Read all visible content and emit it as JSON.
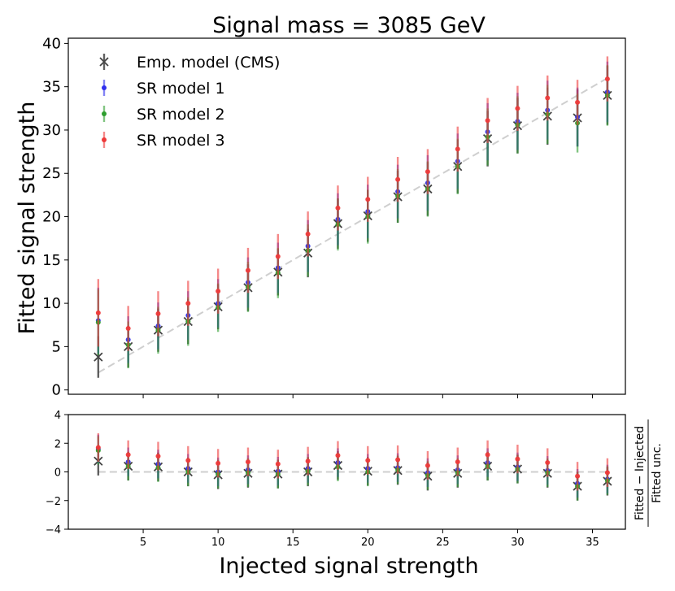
{
  "chart_data": {
    "type": "scatter",
    "title": "Signal mass = 3085 GeV",
    "xlabel": "Injected signal strength",
    "ylabel_top": "Fitted signal strength",
    "ylabel_bottom_numerator": "Fitted − Injected",
    "ylabel_bottom_denominator": "Fitted unc.",
    "xlim": [
      0,
      37.2
    ],
    "ylim_top": [
      -0.5,
      40.6
    ],
    "ylim_bottom": [
      -4,
      4
    ],
    "x_ticks": [
      5,
      10,
      15,
      20,
      25,
      30,
      35
    ],
    "y_ticks_top": [
      0,
      5,
      10,
      15,
      20,
      25,
      30,
      35,
      40
    ],
    "y_ticks_bottom": [
      -4,
      -2,
      0,
      2,
      4
    ],
    "x": [
      2,
      4,
      6,
      8,
      10,
      12,
      14,
      16,
      18,
      20,
      22,
      24,
      26,
      28,
      30,
      32,
      34,
      36
    ],
    "legend_position": "top-left",
    "series": [
      {
        "name": "Emp. model (CMS)",
        "marker": "x",
        "color": "#444444",
        "values": [
          3.8,
          5.0,
          6.9,
          7.9,
          9.6,
          11.8,
          13.6,
          15.8,
          19.2,
          20.1,
          22.3,
          23.2,
          25.8,
          29.0,
          30.5,
          31.6,
          31.4,
          34.0
        ],
        "errors": [
          2.4,
          2.4,
          2.5,
          2.6,
          2.6,
          2.7,
          2.7,
          2.8,
          2.9,
          3.0,
          3.0,
          3.1,
          3.1,
          3.2,
          3.2,
          3.3,
          3.3,
          3.4
        ],
        "pulls": [
          0.75,
          0.4,
          0.35,
          0.0,
          -0.2,
          -0.1,
          -0.15,
          0.0,
          0.45,
          0.05,
          0.1,
          -0.3,
          -0.1,
          0.4,
          0.2,
          -0.1,
          -1.0,
          -0.65
        ]
      },
      {
        "name": "SR model 1",
        "marker": "o",
        "color": "#3030ee",
        "values": [
          8.0,
          5.8,
          7.4,
          8.6,
          10.0,
          12.4,
          14.1,
          16.6,
          19.7,
          20.6,
          22.9,
          23.9,
          26.4,
          29.8,
          31.0,
          32.3,
          31.5,
          34.4
        ],
        "errors": [
          3.8,
          2.7,
          2.7,
          2.8,
          2.8,
          2.9,
          2.9,
          3.0,
          3.0,
          3.1,
          3.1,
          3.2,
          3.2,
          3.3,
          3.3,
          3.4,
          3.4,
          3.5
        ],
        "pulls": [
          1.6,
          0.7,
          0.55,
          0.25,
          0.0,
          0.15,
          0.05,
          0.25,
          0.65,
          0.25,
          0.3,
          -0.05,
          0.15,
          0.65,
          0.35,
          0.1,
          -0.8,
          -0.5
        ]
      },
      {
        "name": "SR model 2",
        "marker": "o",
        "color": "#2e9e2e",
        "values": [
          7.8,
          5.2,
          6.9,
          7.9,
          9.5,
          11.9,
          13.5,
          16.1,
          19.1,
          20.0,
          22.4,
          23.2,
          25.8,
          29.2,
          30.6,
          31.8,
          30.8,
          34.0
        ],
        "errors": [
          3.8,
          2.7,
          2.7,
          2.8,
          2.8,
          2.9,
          2.9,
          3.0,
          3.0,
          3.1,
          3.1,
          3.2,
          3.2,
          3.3,
          3.3,
          3.4,
          3.4,
          3.5
        ],
        "pulls": [
          1.5,
          0.4,
          0.3,
          0.0,
          -0.15,
          -0.05,
          -0.15,
          0.05,
          0.35,
          0.0,
          0.15,
          -0.25,
          -0.05,
          0.4,
          0.2,
          -0.05,
          -1.0,
          -0.6
        ]
      },
      {
        "name": "SR model 3",
        "marker": "o",
        "color": "#ee3a3a",
        "values": [
          8.9,
          7.1,
          8.8,
          10.0,
          11.4,
          13.8,
          15.4,
          18.0,
          21.0,
          22.0,
          24.3,
          25.2,
          27.8,
          31.1,
          32.5,
          33.7,
          33.2,
          35.9
        ],
        "errors": [
          3.9,
          2.6,
          2.6,
          2.6,
          2.6,
          2.6,
          2.6,
          2.6,
          2.6,
          2.6,
          2.6,
          2.6,
          2.6,
          2.6,
          2.6,
          2.6,
          2.6,
          2.6
        ],
        "pulls": [
          1.7,
          1.2,
          1.1,
          0.8,
          0.6,
          0.7,
          0.55,
          0.75,
          1.15,
          0.8,
          0.85,
          0.45,
          0.7,
          1.2,
          0.9,
          0.65,
          -0.3,
          -0.05
        ]
      }
    ]
  }
}
